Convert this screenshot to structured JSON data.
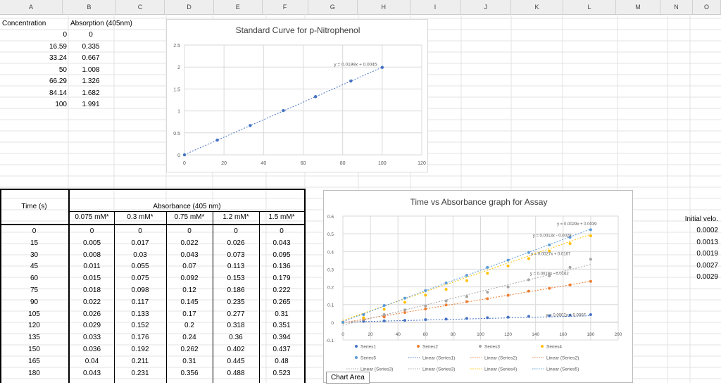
{
  "columns": [
    "A",
    "B",
    "C",
    "D",
    "E",
    "F",
    "G",
    "H",
    "I",
    "J",
    "K",
    "L",
    "M",
    "N",
    "O"
  ],
  "standard_table": {
    "header_conc": "Concentration",
    "header_abs": "Absorption (405nm)",
    "rows": [
      [
        "0",
        "0"
      ],
      [
        "16.59",
        "0.335"
      ],
      [
        "33.24",
        "0.667"
      ],
      [
        "50",
        "1.008"
      ],
      [
        "66.29",
        "1.326"
      ],
      [
        "84.14",
        "1.682"
      ],
      [
        "100",
        "1.991"
      ]
    ]
  },
  "assay_table": {
    "time_header": "Time (s)",
    "abs_header": "Absorbance (405 nm)",
    "conc_headers": [
      "0.075 mM*",
      "0.3 mM*",
      "0.75 mM*",
      "1.2 mM*",
      "1.5 mM*"
    ],
    "rows": [
      [
        "0",
        "0",
        "0",
        "0",
        "0",
        "0"
      ],
      [
        "15",
        "0.005",
        "0.017",
        "0.022",
        "0.026",
        "0.043"
      ],
      [
        "30",
        "0.008",
        "0.03",
        "0.043",
        "0.073",
        "0.095"
      ],
      [
        "45",
        "0.011",
        "0.055",
        "0.07",
        "0.113",
        "0.136"
      ],
      [
        "60",
        "0.015",
        "0.075",
        "0.092",
        "0.153",
        "0.179"
      ],
      [
        "75",
        "0.018",
        "0.098",
        "0.12",
        "0.186",
        "0.222"
      ],
      [
        "90",
        "0.022",
        "0.117",
        "0.145",
        "0.235",
        "0.265"
      ],
      [
        "105",
        "0.026",
        "0.133",
        "0.17",
        "0.277",
        "0.31"
      ],
      [
        "120",
        "0.029",
        "0.152",
        "0.2",
        "0.318",
        "0.351"
      ],
      [
        "135",
        "0.033",
        "0.176",
        "0.24",
        "0.36",
        "0.394"
      ],
      [
        "150",
        "0.036",
        "0.192",
        "0.262",
        "0.402",
        "0.437"
      ],
      [
        "165",
        "0.04",
        "0.211",
        "0.31",
        "0.445",
        "0.48"
      ],
      [
        "180",
        "0.043",
        "0.231",
        "0.356",
        "0.488",
        "0.523"
      ]
    ]
  },
  "velocity": {
    "header": "Initial velo.",
    "values": [
      "0.0002",
      "0.0013",
      "0.0019",
      "0.0027",
      "0.0029"
    ]
  },
  "chart_area_label": "Chart Area",
  "chart_data": [
    {
      "type": "scatter",
      "title": "Standard Curve for p-Nitrophenol",
      "xlim": [
        0,
        120
      ],
      "ylim": [
        0,
        2.5
      ],
      "xticks": [
        "0",
        "20",
        "40",
        "60",
        "80",
        "100",
        "120"
      ],
      "yticks": [
        "0",
        "0.5",
        "1",
        "1.5",
        "2",
        "2.5"
      ],
      "grid": true,
      "color": "#4472c4",
      "x": [
        0,
        16.59,
        33.24,
        50,
        66.29,
        84.14,
        100
      ],
      "y": [
        0,
        0.335,
        0.667,
        1.008,
        1.326,
        1.682,
        1.991
      ],
      "trendline": {
        "slope": 0.0199,
        "intercept": 0.0045,
        "label": "y = 0.0199x + 0.0045"
      }
    },
    {
      "type": "scatter",
      "title": "Time vs Absorbance graph for Assay",
      "xlim": [
        0,
        200
      ],
      "ylim": [
        -0.1,
        0.6
      ],
      "xticks": [
        "0",
        "20",
        "40",
        "60",
        "80",
        "100",
        "120",
        "140",
        "160",
        "180",
        "200"
      ],
      "yticks": [
        "-0.1",
        "0",
        "0.1",
        "0.2",
        "0.3",
        "0.4",
        "0.5",
        "0.6"
      ],
      "grid": true,
      "legend_position": "bottom",
      "x": [
        0,
        15,
        30,
        45,
        60,
        75,
        90,
        105,
        120,
        135,
        150,
        165,
        180
      ],
      "series": [
        {
          "name": "Series1",
          "color": "#4472c4",
          "values": [
            0,
            0.005,
            0.008,
            0.011,
            0.015,
            0.018,
            0.022,
            0.026,
            0.029,
            0.033,
            0.036,
            0.04,
            0.043
          ],
          "trendline": {
            "slope": 0.0002,
            "intercept": 0.0007,
            "label": "y = 0.0002x + 0.0007"
          }
        },
        {
          "name": "Series2",
          "color": "#ed7d31",
          "values": [
            0,
            0.017,
            0.03,
            0.055,
            0.075,
            0.098,
            0.117,
            0.133,
            0.152,
            0.176,
            0.192,
            0.211,
            0.231
          ],
          "trendline": {
            "slope": 0.0013,
            "intercept": -0.0028,
            "label": "y = 0.0013x - 0.0028"
          }
        },
        {
          "name": "Series3",
          "color": "#a5a5a5",
          "values": [
            0,
            0.022,
            0.043,
            0.07,
            0.092,
            0.12,
            0.145,
            0.17,
            0.2,
            0.24,
            0.262,
            0.31,
            0.356
          ],
          "trendline": {
            "slope": 0.0019,
            "intercept": -0.0162,
            "label": "y = 0.0019x - 0.0162"
          }
        },
        {
          "name": "Series4",
          "color": "#ffc000",
          "values": [
            0,
            0.026,
            0.073,
            0.113,
            0.153,
            0.186,
            0.235,
            0.277,
            0.318,
            0.36,
            0.402,
            0.445,
            0.488
          ],
          "trendline": {
            "slope": 0.0027,
            "intercept": 0.0107,
            "label": "y = 0.0027x + 0.0107"
          }
        },
        {
          "name": "Series5",
          "color": "#5b9bd5",
          "values": [
            0,
            0.043,
            0.095,
            0.136,
            0.179,
            0.222,
            0.265,
            0.31,
            0.351,
            0.394,
            0.437,
            0.48,
            0.523
          ],
          "trendline": {
            "slope": 0.0029,
            "intercept": 0.0039,
            "label": "y = 0.0029x + 0.0039"
          }
        }
      ],
      "legend": [
        "Series1",
        "Series2",
        "Series3",
        "Series4",
        "Series5",
        "Linear (Series1)",
        "Linear (Series2)",
        "Linear (Series2)",
        "Linear (Series3)",
        "Linear (Series3)",
        "Linear (Series4)",
        "Linear (Series5)"
      ]
    }
  ]
}
